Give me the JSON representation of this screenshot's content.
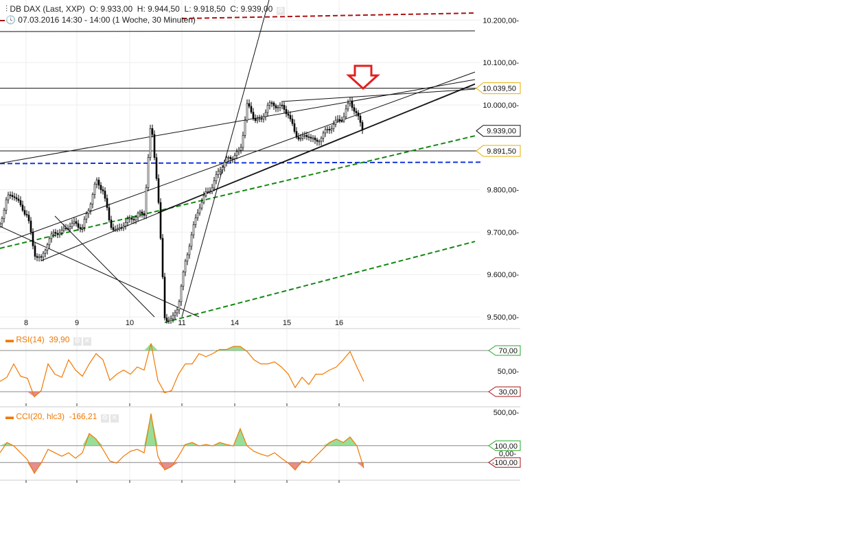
{
  "header": {
    "instrument": "DB DAX (Last, XXP)",
    "open": "O: 9.933,00",
    "high": "H: 9.944,50",
    "low": "L: 9.918,50",
    "close": "C: 9.939,00",
    "range": "07.03.2016 14:30 - 14:00 (1 Woche, 30 Minuten)",
    "icons": [
      "candlestick-settings-icon",
      "clock-icon"
    ]
  },
  "colors": {
    "accent": "#f07800",
    "up_zone": "#7ed67e",
    "down_zone": "#e07070",
    "green_dash": "#118811",
    "blue_dash": "#1133dd",
    "red_dash": "#aa1111",
    "arrow": "#e02020"
  },
  "chart_data": [
    {
      "type": "candlestick",
      "xtick_labels": [
        "8",
        "9",
        "10",
        "11",
        "14",
        "15",
        "16"
      ],
      "ytick_labels": [
        "10.200,00",
        "10.100,00",
        "10.000,00",
        "9.800,00",
        "9.700,00",
        "9.600,00",
        "9.500,00"
      ],
      "ylim": [
        9500,
        10220
      ],
      "close_samples": [
        9720,
        9780,
        9790,
        9760,
        9740,
        9650,
        9635,
        9680,
        9700,
        9700,
        9715,
        9720,
        9710,
        9760,
        9820,
        9800,
        9720,
        9700,
        9720,
        9730,
        9740,
        9745,
        9960,
        9800,
        9500,
        9490,
        9530,
        9630,
        9700,
        9760,
        9790,
        9810,
        9850,
        9870,
        9880,
        9890,
        10000,
        9970,
        9960,
        10000,
        10000,
        9995,
        9980,
        9930,
        9920,
        9930,
        9910,
        9930,
        9945,
        9960,
        9970,
        10010,
        9975,
        9939
      ],
      "price_tags": [
        {
          "label": "10.039,50",
          "value": 10039.5,
          "color": "#e0b000"
        },
        {
          "label": "9.939,00",
          "value": 9939,
          "color": "#111111"
        },
        {
          "label": "9.891,50",
          "value": 9891.5,
          "color": "#e0b000"
        }
      ],
      "horizontal_lines": [
        10039.5,
        9891.5
      ],
      "dashed_levels": [
        {
          "value": 9865,
          "color": "#1133dd"
        }
      ]
    },
    {
      "type": "line",
      "label": "RSI(14)",
      "value_label": "39,90",
      "levels": [
        {
          "label": "70,00",
          "value": 70,
          "color": "#22aa22"
        },
        {
          "label": "30,00",
          "value": 30,
          "color": "#aa1111"
        }
      ],
      "ytick_labels": [
        "50,00"
      ],
      "ylim": [
        15,
        95
      ],
      "values": [
        40,
        44,
        57,
        45,
        43,
        25,
        31,
        57,
        47,
        44,
        61,
        51,
        45,
        57,
        67,
        61,
        41,
        47,
        51,
        47,
        54,
        51,
        77,
        41,
        29,
        31,
        47,
        57,
        57,
        67,
        64,
        67,
        71,
        71,
        74,
        74,
        69,
        61,
        57,
        57,
        59,
        54,
        47,
        34,
        44,
        37,
        47,
        47,
        51,
        54,
        61,
        69,
        54,
        39.9
      ]
    },
    {
      "type": "line",
      "label": "CCI(20, hlc3)",
      "value_label": "-166,21",
      "levels": [
        {
          "label": "100,00",
          "value": 100,
          "color": "#22aa22"
        },
        {
          "label": "-100,00",
          "value": -100,
          "color": "#aa1111"
        }
      ],
      "ytick_labels": [
        "500,00",
        "0,00"
      ],
      "ylim": [
        -300,
        500
      ],
      "values": [
        16,
        139,
        98,
        16,
        -66,
        -230,
        -107,
        57,
        16,
        -25,
        16,
        -49,
        16,
        246,
        180,
        57,
        -82,
        -107,
        -25,
        33,
        57,
        16,
        484,
        -25,
        -189,
        -148,
        -25,
        115,
        139,
        98,
        115,
        98,
        139,
        115,
        98,
        303,
        98,
        33,
        0,
        -25,
        16,
        -49,
        -107,
        -189,
        -82,
        -107,
        -25,
        57,
        139,
        180,
        139,
        205,
        98,
        -166.21
      ]
    }
  ]
}
